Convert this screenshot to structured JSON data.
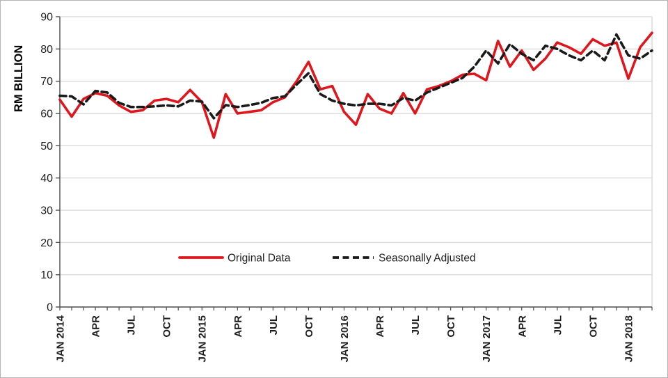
{
  "chart_data": {
    "type": "line",
    "title": "",
    "ylabel": "RM BILLION",
    "xlabel": "",
    "ylim": [
      0,
      90
    ],
    "y_ticks": [
      0,
      10,
      20,
      30,
      40,
      50,
      60,
      70,
      80,
      90
    ],
    "grid": "horizontal",
    "legend_position": "inside-bottom-center",
    "x_tick_label_interval_months": 3,
    "x_tick_labels_shown": [
      "JAN 2014",
      "APR",
      "JUL",
      "OCT",
      "JAN 2015",
      "APR",
      "JUL",
      "OCT",
      "JAN 2016",
      "APR",
      "JUL",
      "OCT",
      "JAN 2017",
      "APR",
      "JUL",
      "OCT",
      "JAN 2018"
    ],
    "categories": [
      "JAN 2014",
      "FEB 2014",
      "MAR 2014",
      "APR 2014",
      "MAY 2014",
      "JUN 2014",
      "JUL 2014",
      "AUG 2014",
      "SEP 2014",
      "OCT 2014",
      "NOV 2014",
      "DEC 2014",
      "JAN 2015",
      "FEB 2015",
      "MAR 2015",
      "APR 2015",
      "MAY 2015",
      "JUN 2015",
      "JUL 2015",
      "AUG 2015",
      "SEP 2015",
      "OCT 2015",
      "NOV 2015",
      "DEC 2015",
      "JAN 2016",
      "FEB 2016",
      "MAR 2016",
      "APR 2016",
      "MAY 2016",
      "JUN 2016",
      "JUL 2016",
      "AUG 2016",
      "SEP 2016",
      "OCT 2016",
      "NOV 2016",
      "DEC 2016",
      "JAN 2017",
      "FEB 2017",
      "MAR 2017",
      "APR 2017",
      "MAY 2017",
      "JUN 2017",
      "JUL 2017",
      "AUG 2017",
      "SEP 2017",
      "OCT 2017",
      "NOV 2017",
      "DEC 2017",
      "JAN 2018",
      "FEB 2018",
      "MAR 2018"
    ],
    "series": [
      {
        "name": "Original Data",
        "color": "#e0161d",
        "line_style": "solid",
        "values": [
          64.3,
          59,
          64.5,
          66.3,
          65.5,
          62.5,
          60.5,
          61,
          64,
          64.5,
          63.5,
          67.3,
          63.5,
          52.5,
          66,
          60,
          60.5,
          61,
          63.5,
          65,
          70,
          76,
          67.5,
          68.5,
          60.5,
          56.5,
          66,
          61.5,
          60,
          66.3,
          60,
          67.5,
          68.5,
          70,
          72,
          72.3,
          70.3,
          82.5,
          74.5,
          79.5,
          73.5,
          77,
          82,
          80.5,
          78.5,
          83,
          81,
          82,
          70.8,
          80.5,
          85
        ]
      },
      {
        "name": "Seasonally Adjusted",
        "color": "#1a1a1a",
        "line_style": "dashed",
        "values": [
          65.5,
          65.3,
          62.8,
          67,
          66.5,
          63.3,
          62,
          62,
          62.2,
          62.5,
          62.2,
          64,
          63.7,
          58.5,
          62.6,
          62,
          62.6,
          63.3,
          64.8,
          65.3,
          69,
          72.5,
          66,
          64,
          63,
          62.5,
          63,
          63,
          62.5,
          64.8,
          64,
          66.5,
          68,
          69.5,
          71,
          74.5,
          79.5,
          75.5,
          81.5,
          78.5,
          76.5,
          81,
          80,
          78,
          76.5,
          79.5,
          76.5,
          84.5,
          78,
          77,
          79.5
        ]
      }
    ]
  },
  "legend": {
    "original_label": "Original Data",
    "adjusted_label": "Seasonally Adjusted"
  },
  "colors": {
    "gridline": "#d3d3d3",
    "axis": "#4d4d4d",
    "text": "#1f1f1f",
    "frame_border": "#b5b5b5",
    "background": "#ffffff"
  }
}
